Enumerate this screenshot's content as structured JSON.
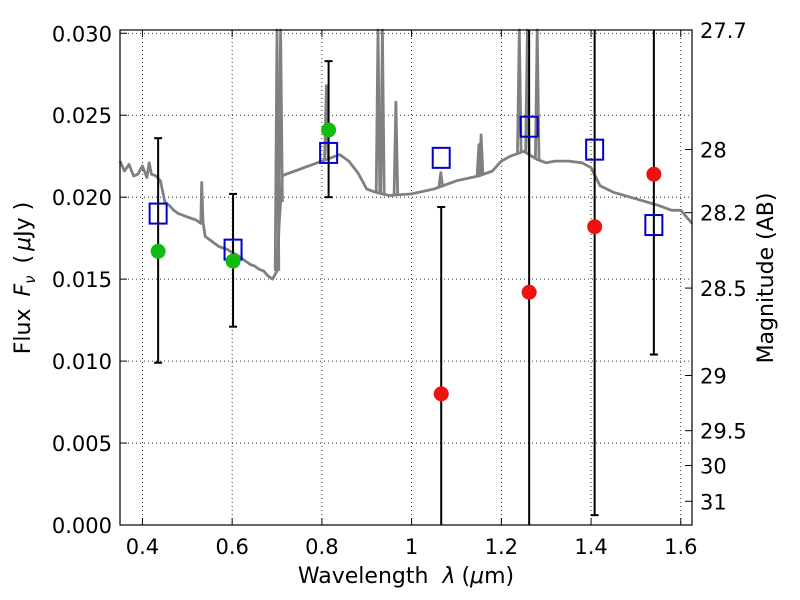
{
  "chart_data": {
    "type": "scatter",
    "xlabel": {
      "prefix": "Wavelength",
      "symbol": "λ",
      "unit_open": "(",
      "unit_mu": "μ",
      "unit_rest": "m)"
    },
    "ylabel": {
      "prefix": "Flux",
      "symbol": "F",
      "subscript": "ν",
      "unit_open": "(",
      "unit_mu": "μ",
      "unit_rest": "Jy )"
    },
    "y2label": "Magnitude (AB)",
    "xlim": [
      0.35,
      1.625
    ],
    "ylim": [
      0.0,
      0.0302
    ],
    "grid": true,
    "x_ticks": [
      {
        "value": 0.4,
        "label": "0.4"
      },
      {
        "value": 0.6,
        "label": "0.6"
      },
      {
        "value": 0.8,
        "label": "0.8"
      },
      {
        "value": 1.0,
        "label": "1"
      },
      {
        "value": 1.2,
        "label": "1.2"
      },
      {
        "value": 1.4,
        "label": "1.4"
      },
      {
        "value": 1.6,
        "label": "1.6"
      }
    ],
    "y_ticks": [
      {
        "value": 0.0,
        "label": "0.000"
      },
      {
        "value": 0.005,
        "label": "0.005"
      },
      {
        "value": 0.01,
        "label": "0.010"
      },
      {
        "value": 0.015,
        "label": "0.015"
      },
      {
        "value": 0.02,
        "label": "0.020"
      },
      {
        "value": 0.025,
        "label": "0.025"
      },
      {
        "value": 0.03,
        "label": "0.030"
      }
    ],
    "y2_ticks": [
      {
        "value": 27.7,
        "label": "27.7"
      },
      {
        "value": 28.0,
        "label": "28"
      },
      {
        "value": 28.2,
        "label": "28.2"
      },
      {
        "value": 28.5,
        "label": "28.5"
      },
      {
        "value": 29.0,
        "label": "29"
      },
      {
        "value": 29.5,
        "label": "29.5"
      },
      {
        "value": 30.0,
        "label": "30"
      },
      {
        "value": 31.0,
        "label": "31"
      }
    ],
    "colors": {
      "template": "#808080",
      "blue": "#0000cc",
      "green": "#11bb11",
      "red": "#ee1111",
      "errorbar": "#000000"
    },
    "series": [
      {
        "kind": "line",
        "x": [
          0.35,
          0.36,
          0.37,
          0.38,
          0.39,
          0.4,
          0.41,
          0.415,
          0.42,
          0.43,
          0.44,
          0.45,
          0.46,
          0.47,
          0.48,
          0.49,
          0.5,
          0.51,
          0.52,
          0.53,
          0.532,
          0.535,
          0.54,
          0.55,
          0.56,
          0.57,
          0.58,
          0.59,
          0.6,
          0.61,
          0.62,
          0.63,
          0.64,
          0.65,
          0.66,
          0.67,
          0.68,
          0.69,
          0.7,
          0.705,
          0.712,
          0.72,
          0.74,
          0.76,
          0.78,
          0.8,
          0.82,
          0.84,
          0.86,
          0.88,
          0.9,
          0.92,
          0.95,
          1.0,
          1.05,
          1.1,
          1.15,
          1.18,
          1.2,
          1.22,
          1.25,
          1.28,
          1.3,
          1.32,
          1.35,
          1.38,
          1.4,
          1.42,
          1.45,
          1.5,
          1.55,
          1.58,
          1.6,
          1.625
        ],
        "y": [
          0.0222,
          0.0216,
          0.022,
          0.0213,
          0.0214,
          0.0219,
          0.0212,
          0.0221,
          0.0214,
          0.0213,
          0.021,
          0.0197,
          0.0195,
          0.0192,
          0.019,
          0.0189,
          0.0188,
          0.0187,
          0.0186,
          0.0184,
          0.0209,
          0.0185,
          0.0176,
          0.0174,
          0.0172,
          0.017,
          0.0169,
          0.0168,
          0.0166,
          0.0165,
          0.0163,
          0.0161,
          0.0159,
          0.0158,
          0.0156,
          0.0155,
          0.0152,
          0.015,
          0.0155,
          0.0185,
          0.0213,
          0.0214,
          0.0216,
          0.0218,
          0.022,
          0.0222,
          0.0224,
          0.0226,
          0.0222,
          0.0215,
          0.0205,
          0.0203,
          0.0201,
          0.0202,
          0.0205,
          0.021,
          0.0213,
          0.0216,
          0.0222,
          0.0225,
          0.0228,
          0.0223,
          0.0221,
          0.0222,
          0.0222,
          0.0221,
          0.0218,
          0.0207,
          0.0203,
          0.0199,
          0.0195,
          0.0192,
          0.0192,
          0.0184
        ],
        "emission_lines": [
          {
            "x": 0.7,
            "y": 0.0302
          },
          {
            "x": 0.708,
            "y": 0.0302
          },
          {
            "x": 0.81,
            "y": 0.0268
          },
          {
            "x": 0.925,
            "y": 0.0302
          },
          {
            "x": 0.935,
            "y": 0.0302
          },
          {
            "x": 0.965,
            "y": 0.0258
          },
          {
            "x": 1.065,
            "y": 0.0215
          },
          {
            "x": 1.15,
            "y": 0.0232
          },
          {
            "x": 1.155,
            "y": 0.0238
          },
          {
            "x": 1.24,
            "y": 0.0302
          },
          {
            "x": 1.258,
            "y": 0.0302
          },
          {
            "x": 1.28,
            "y": 0.0302
          }
        ]
      },
      {
        "kind": "open-square",
        "x": [
          0.435,
          0.602,
          0.815,
          1.066,
          1.262,
          1.408,
          1.54
        ],
        "y": [
          0.019,
          0.0168,
          0.0227,
          0.0224,
          0.0243,
          0.0229,
          0.0183
        ]
      },
      {
        "kind": "filled-circle-green",
        "x": [
          0.435,
          0.602,
          0.815
        ],
        "y": [
          0.0167,
          0.0161,
          0.0241
        ],
        "err_low": [
          0.0099,
          0.0121,
          0.02
        ],
        "err_high": [
          0.0236,
          0.0202,
          0.0283
        ]
      },
      {
        "kind": "filled-circle-red",
        "x": [
          1.066,
          1.262,
          1.408,
          1.54
        ],
        "y": [
          0.008,
          0.0142,
          0.0182,
          0.0214
        ],
        "err_low": [
          0.0,
          0.0,
          0.0006,
          0.0104
        ],
        "err_high": [
          0.0194,
          0.0302,
          0.0302,
          0.0302
        ]
      }
    ]
  }
}
